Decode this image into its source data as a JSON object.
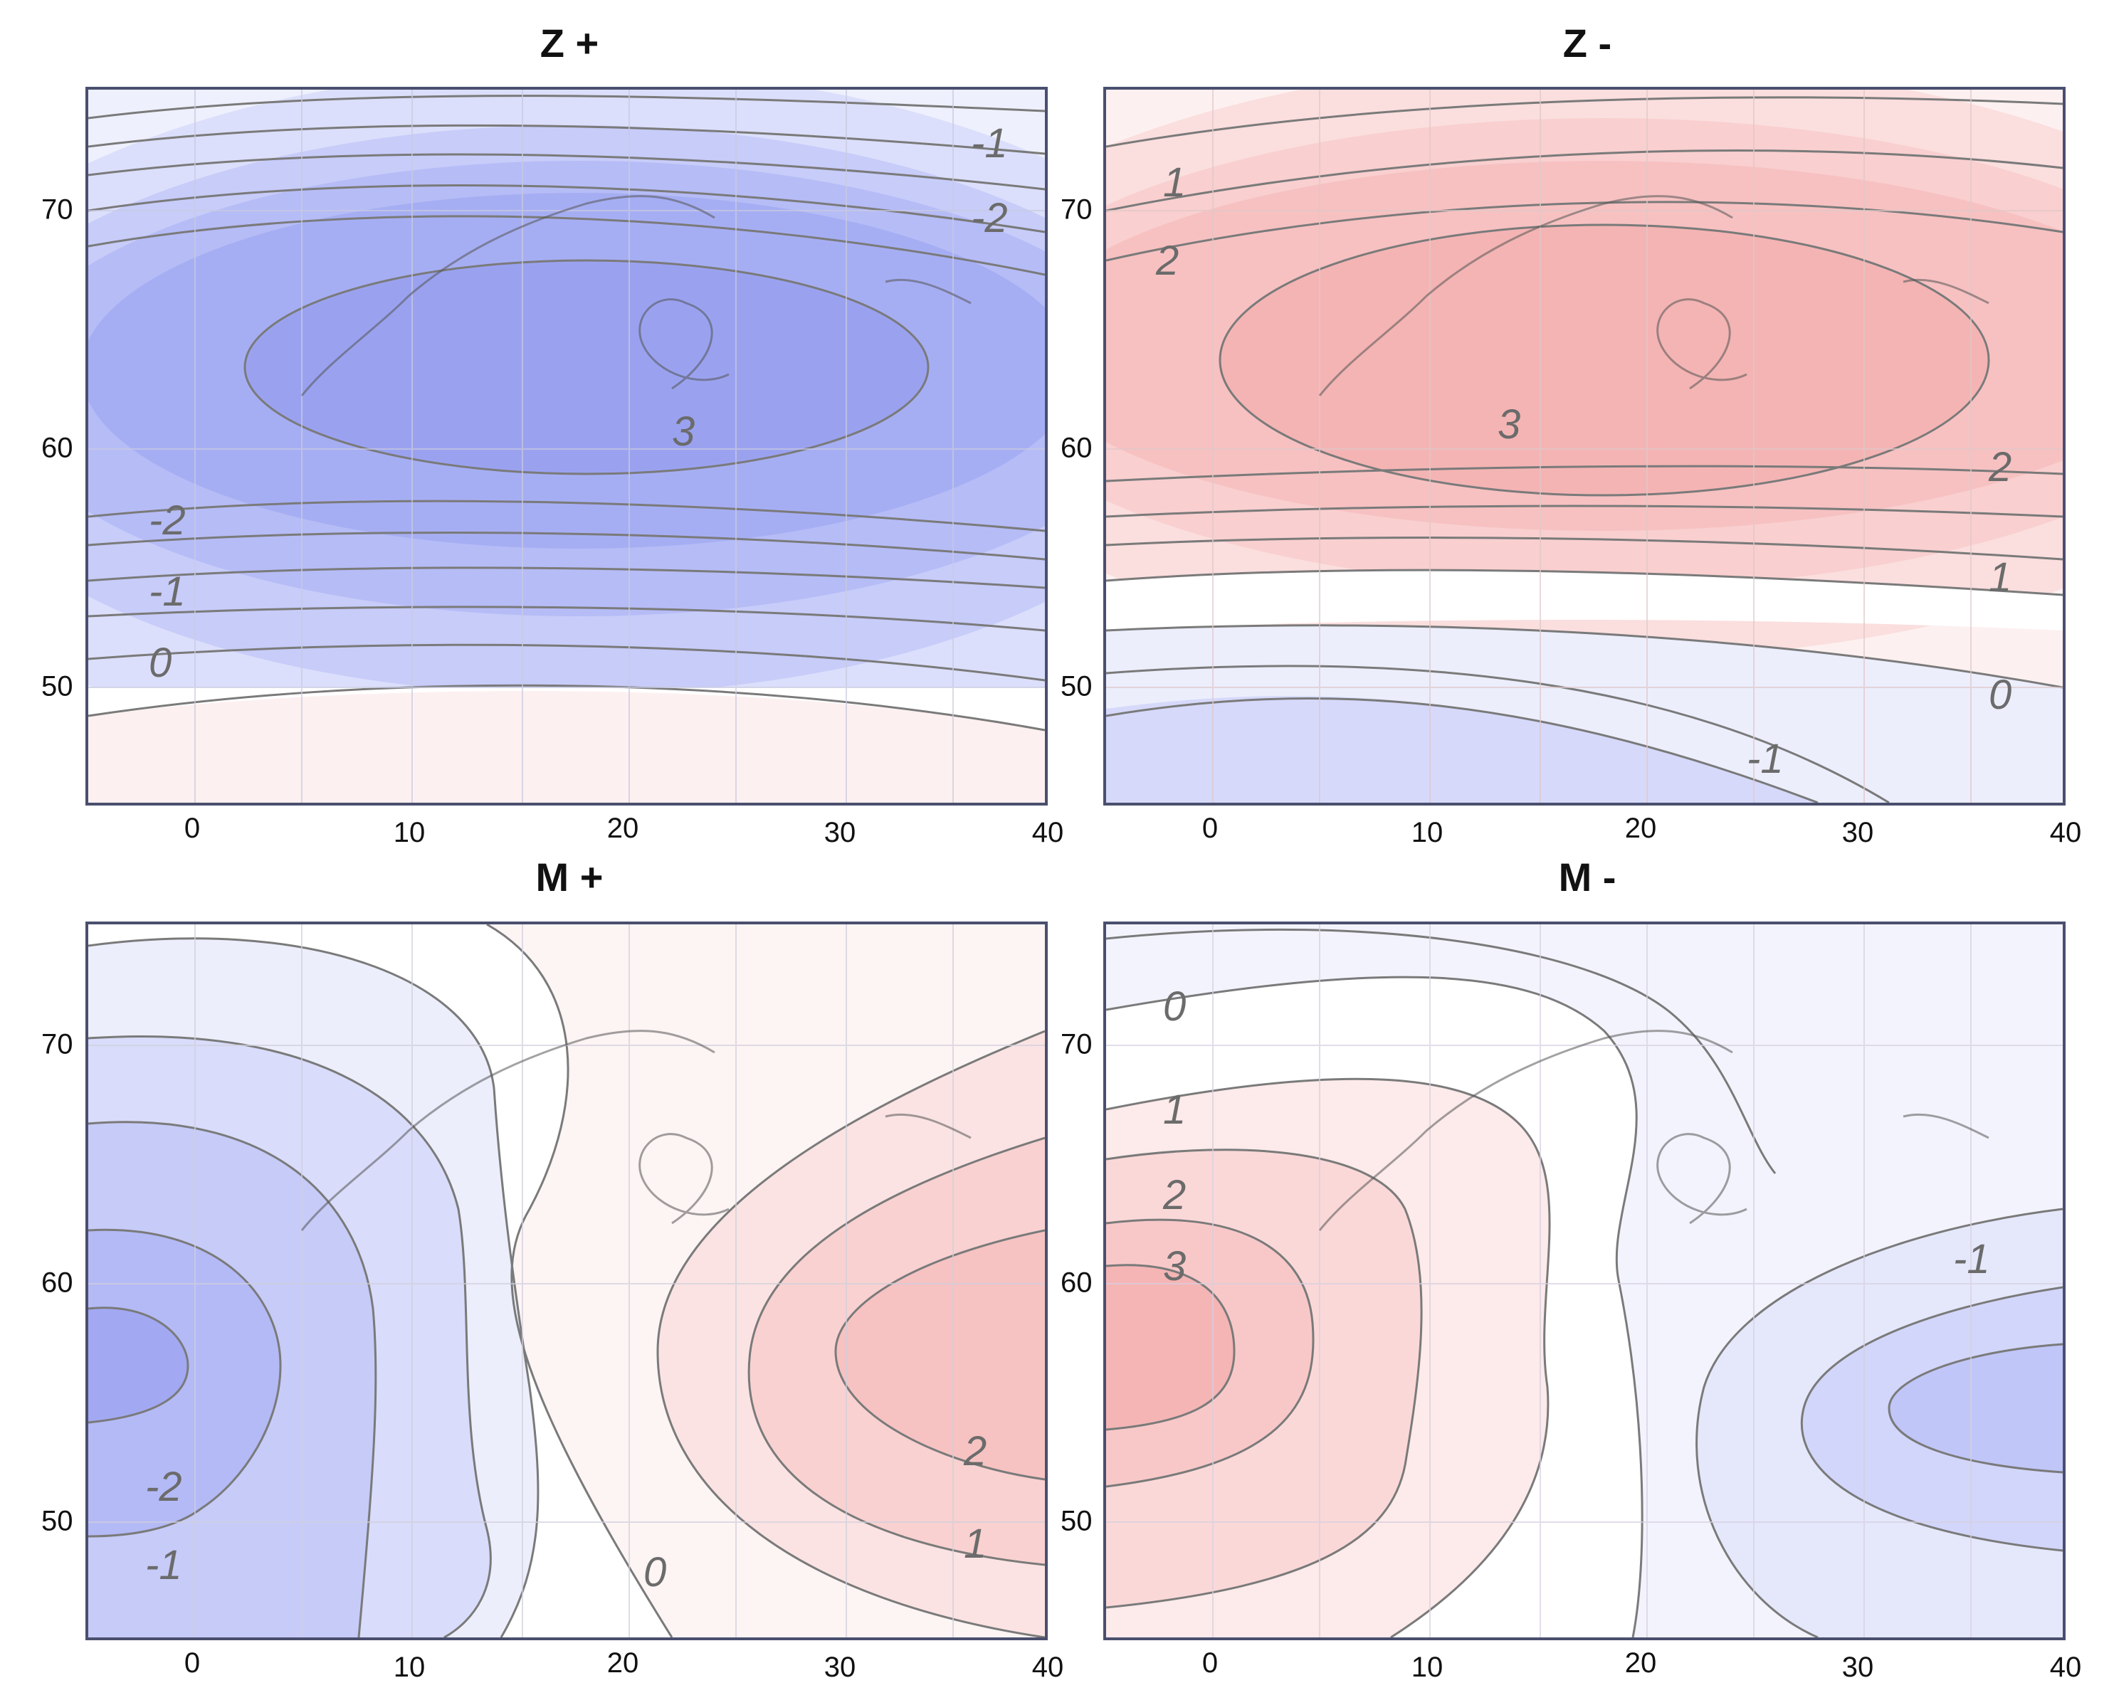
{
  "panels": [
    {
      "id": "zplus",
      "title": "Z +",
      "contour_labels": [
        "-1",
        "-2",
        "3",
        "-2",
        "-1",
        "0"
      ]
    },
    {
      "id": "zminus",
      "title": "Z -",
      "contour_labels": [
        "1",
        "2",
        "3",
        "2",
        "1",
        "0",
        "-1"
      ]
    },
    {
      "id": "mplus",
      "title": "M +",
      "contour_labels": [
        "-2",
        "-1",
        "0",
        "1",
        "2"
      ]
    },
    {
      "id": "mminus",
      "title": "M -",
      "contour_labels": [
        "0",
        "1",
        "2",
        "3",
        "-1"
      ]
    }
  ],
  "axes": {
    "x_ticks": [
      "0",
      "10",
      "20",
      "30",
      "40"
    ],
    "y_ticks": [
      "70",
      "60",
      "50"
    ]
  },
  "colors": {
    "positive": "#f4a6a6",
    "negative": "#9fa6f0",
    "contour": "#7a7a7a",
    "frame": "#4a4f6e"
  }
}
